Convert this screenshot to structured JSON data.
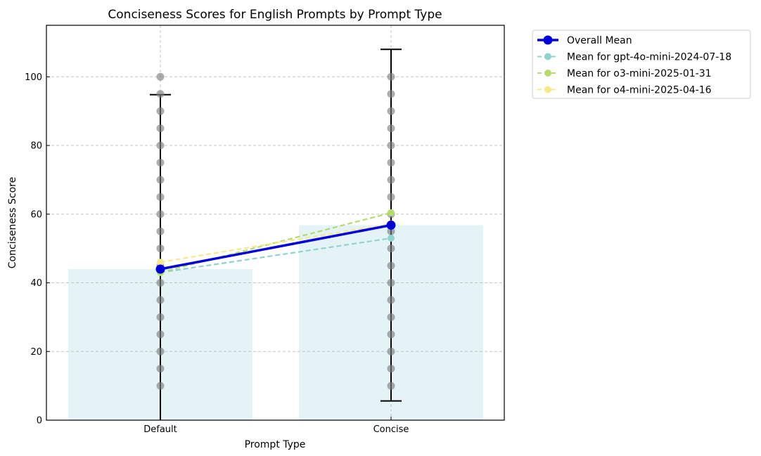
{
  "chart_data": {
    "type": "bar",
    "title": "Conciseness Scores for English Prompts by Prompt Type",
    "xlabel": "Prompt Type",
    "ylabel": "Conciseness Score",
    "categories": [
      "Default",
      "Concise"
    ],
    "ylim": [
      0,
      115
    ],
    "yticks": [
      0,
      20,
      40,
      60,
      80,
      100
    ],
    "grid": true,
    "legend_position": "outside-top-right",
    "bar_values": [
      44,
      56.8
    ],
    "bar_color": "#e3f3f6",
    "error_bars": [
      {
        "lower": 0,
        "upper": 94.8
      },
      {
        "lower": 5.6,
        "upper": 108
      }
    ],
    "scatter_points": [
      [
        10,
        15,
        20,
        25,
        30,
        35,
        40,
        45,
        50,
        55,
        60,
        65,
        70,
        75,
        80,
        85,
        90,
        95,
        100
      ],
      [
        10,
        15,
        20,
        25,
        30,
        35,
        40,
        45,
        50,
        55,
        60,
        65,
        70,
        75,
        80,
        85,
        90,
        95,
        100
      ]
    ],
    "scatter_color": "#808080",
    "series": [
      {
        "name": "Overall Mean",
        "values": [
          44,
          56.8
        ],
        "color": "#0000dd",
        "style": "solid"
      },
      {
        "name": "Mean for gpt-4o-mini-2024-07-18",
        "values": [
          43,
          53
        ],
        "color": "#8fd3cf",
        "style": "dashed"
      },
      {
        "name": "Mean for o3-mini-2025-01-31",
        "values": [
          43,
          60.4
        ],
        "color": "#b4dc6c",
        "style": "dashed"
      },
      {
        "name": "Mean for o4-mini-2025-04-16",
        "values": [
          46,
          57.2
        ],
        "color": "#f7e98a",
        "style": "dashed"
      }
    ]
  }
}
